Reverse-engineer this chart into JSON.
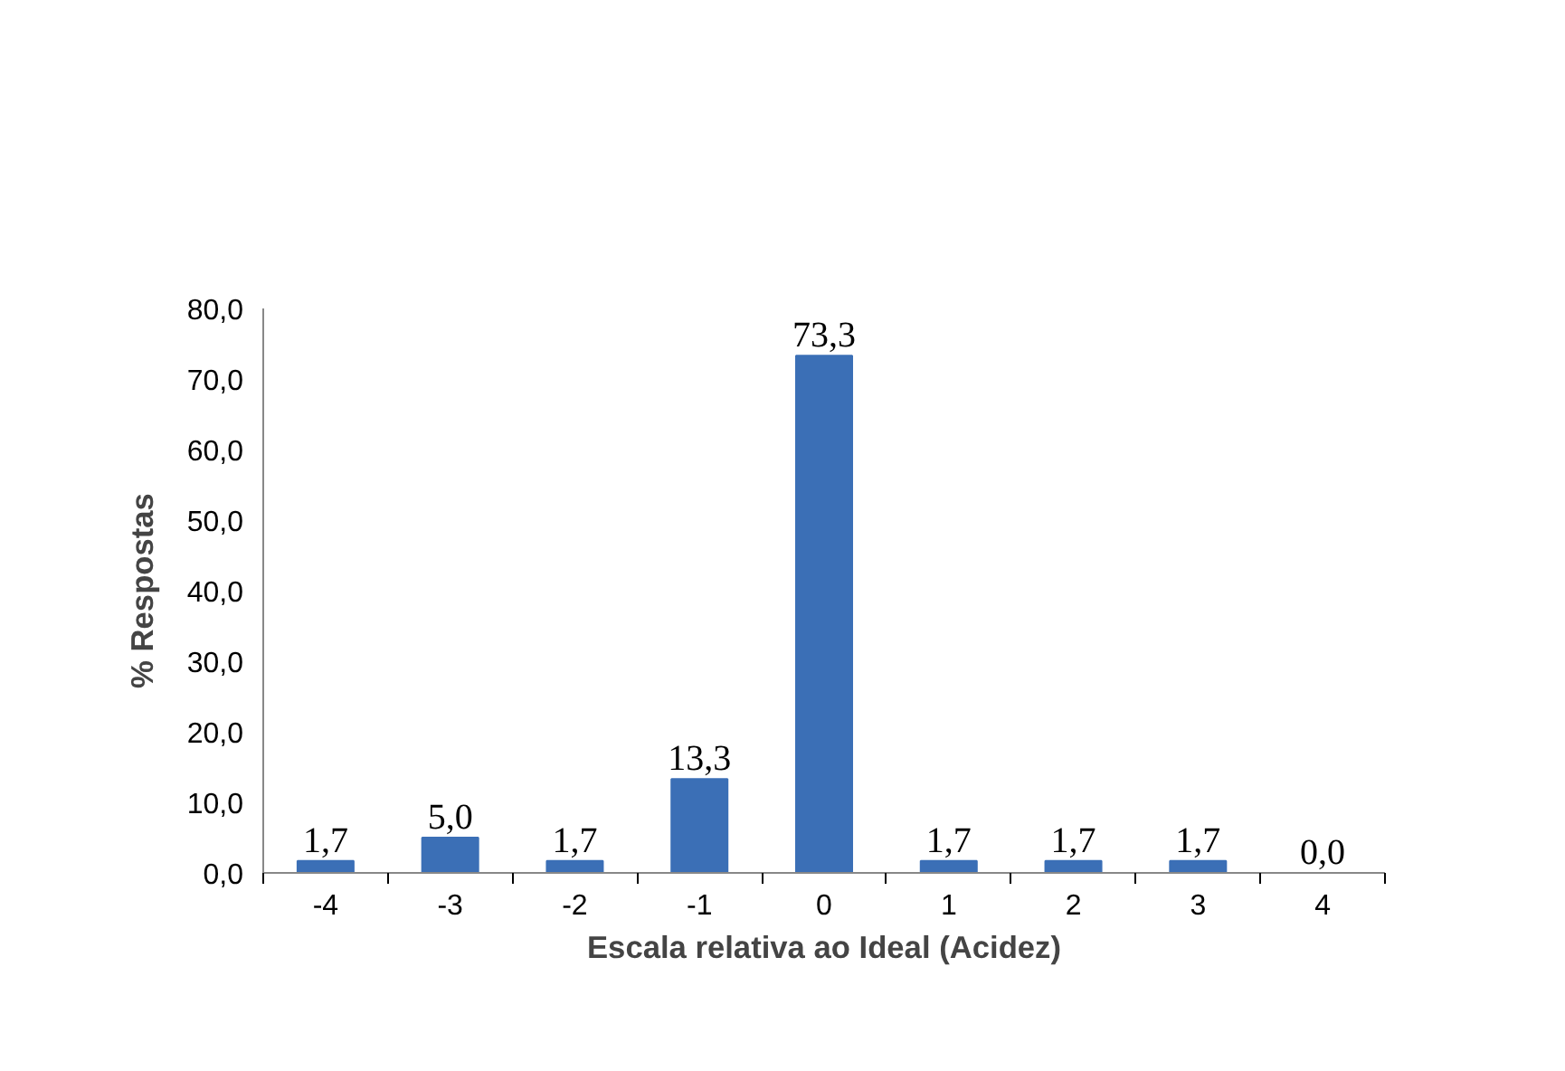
{
  "chart_data": {
    "type": "bar",
    "xlabel": "Escala relativa ao Ideal (Acidez)",
    "ylabel": "% Respostas",
    "categories": [
      "-4",
      "-3",
      "-2",
      "-1",
      "0",
      "1",
      "2",
      "3",
      "4"
    ],
    "values": [
      1.7,
      5.0,
      1.7,
      13.3,
      73.3,
      1.7,
      1.7,
      1.7,
      0.0
    ],
    "value_labels": [
      "1,7",
      "5,0",
      "1,7",
      "13,3",
      "73,3",
      "1,7",
      "1,7",
      "1,7",
      "0,0"
    ],
    "color": "#3b6fb6",
    "ylim": [
      0,
      80
    ],
    "yticks": [
      {
        "value": 0,
        "label": "0,0"
      },
      {
        "value": 10,
        "label": "10,0"
      },
      {
        "value": 20,
        "label": "20,0"
      },
      {
        "value": 30,
        "label": "30,0"
      },
      {
        "value": 40,
        "label": "40,0"
      },
      {
        "value": 50,
        "label": "50,0"
      },
      {
        "value": 60,
        "label": "60,0"
      },
      {
        "value": 70,
        "label": "70,0"
      },
      {
        "value": 80,
        "label": "80,0"
      }
    ],
    "grid": false
  }
}
